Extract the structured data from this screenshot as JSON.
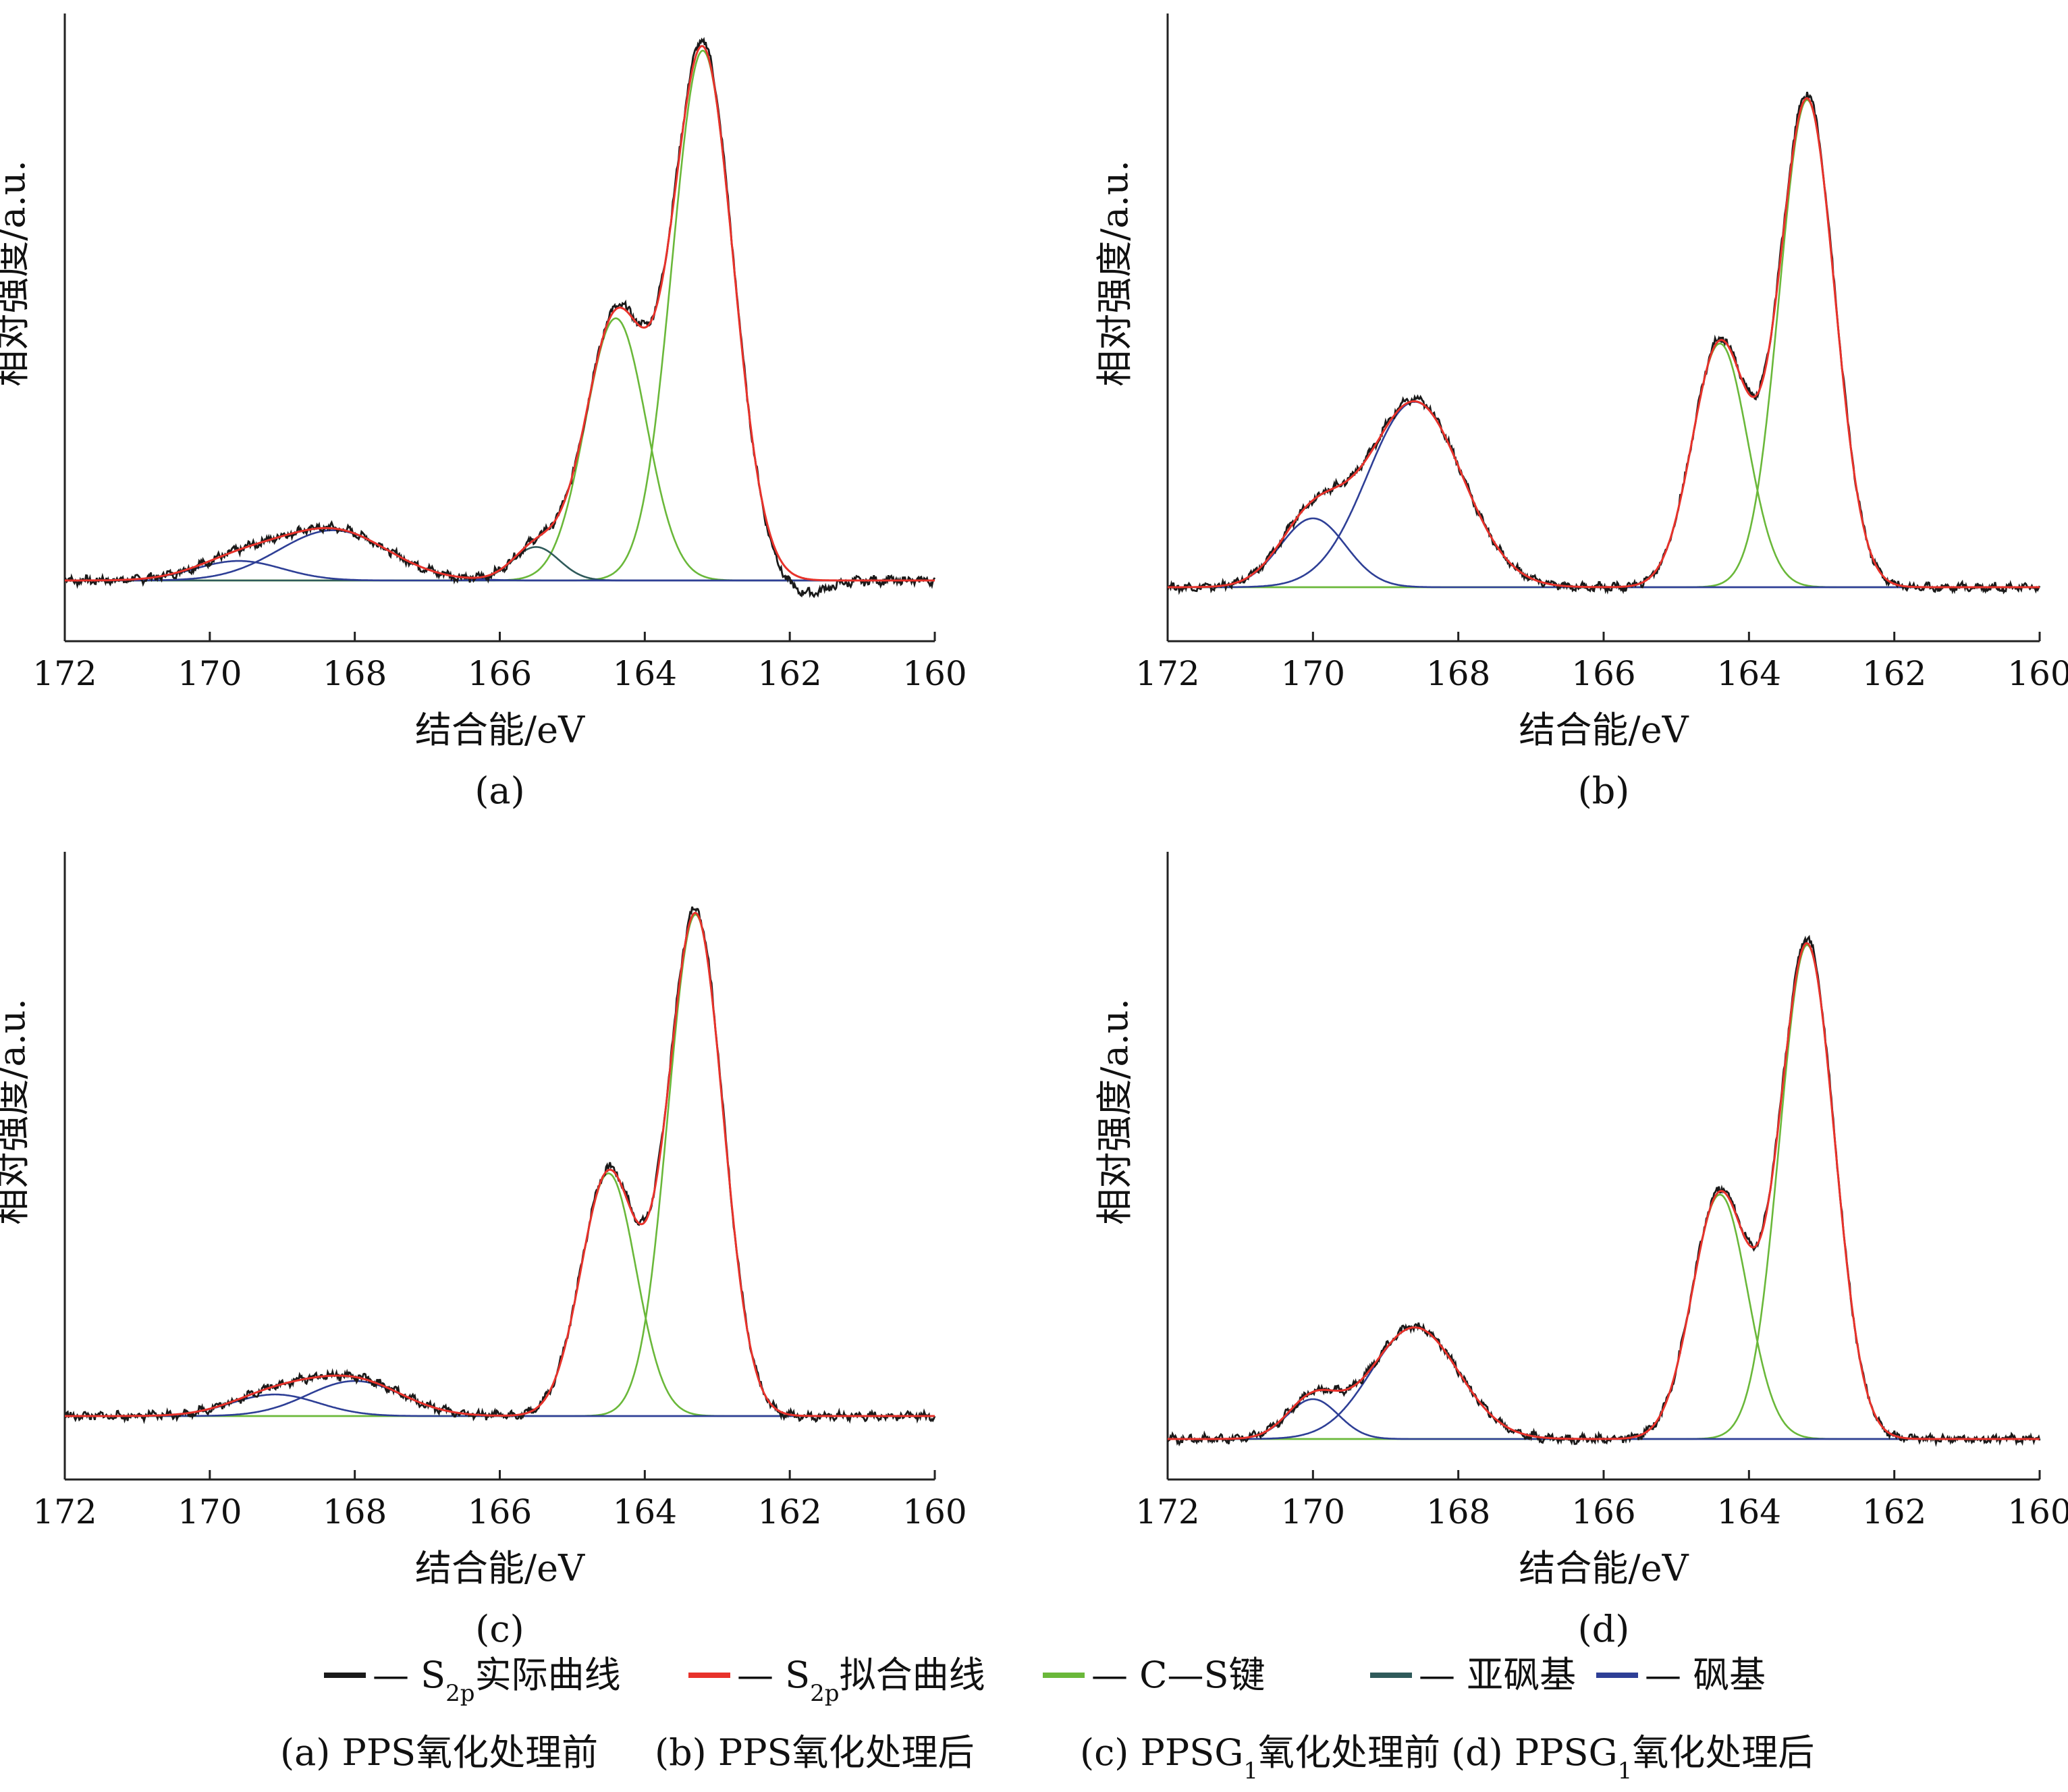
{
  "colors": {
    "axis": "#222222",
    "measured": "#1a1a1a",
    "fit": "#e8322b",
    "cs_bond": "#6ab83a",
    "sulfoxide": "#2f5a5a",
    "sulfone": "#2e3f96"
  },
  "chart_data": [
    {
      "type": "line",
      "panel": "a",
      "caption": "(a)",
      "xlabel": "结合能/eV",
      "ylabel": "相对强度/a.u.",
      "xlim": [
        172,
        160
      ],
      "ylim": [
        -0.1,
        1.0
      ],
      "xticks": [
        172,
        170,
        168,
        166,
        164,
        162,
        160
      ],
      "xtick_labels": [
        "172",
        "170",
        "168",
        "166",
        "164",
        "162",
        "160"
      ],
      "baseline": 0,
      "components": [
        {
          "series": "cs_bond",
          "peaks": [
            {
              "center": 163.2,
              "height": 0.95,
              "sigma": 0.42
            },
            {
              "center": 164.4,
              "height": 0.47,
              "sigma": 0.42
            }
          ]
        },
        {
          "series": "sulfoxide",
          "peaks": [
            {
              "center": 165.5,
              "height": 0.06,
              "sigma": 0.32
            }
          ]
        },
        {
          "series": "sulfone",
          "peaks": [
            {
              "center": 168.3,
              "height": 0.09,
              "sigma": 0.75
            },
            {
              "center": 169.6,
              "height": 0.035,
              "sigma": 0.6
            }
          ]
        }
      ],
      "measured_dip": {
        "center": 161.8,
        "depth": 0.025,
        "sigma": 0.3
      }
    },
    {
      "type": "line",
      "panel": "b",
      "caption": "(b)",
      "xlabel": "结合能/eV",
      "ylabel": "相对强度/a.u.",
      "xlim": [
        172,
        160
      ],
      "ylim": [
        -0.1,
        1.0
      ],
      "xticks": [
        172,
        170,
        168,
        166,
        164,
        162,
        160
      ],
      "xtick_labels": [
        "172",
        "170",
        "168",
        "166",
        "164",
        "162",
        "160"
      ],
      "baseline": 0,
      "components": [
        {
          "series": "cs_bond",
          "peaks": [
            {
              "center": 163.2,
              "height": 0.92,
              "sigma": 0.38
            },
            {
              "center": 164.4,
              "height": 0.46,
              "sigma": 0.38
            }
          ]
        },
        {
          "series": "sulfone",
          "peaks": [
            {
              "center": 168.6,
              "height": 0.35,
              "sigma": 0.65
            },
            {
              "center": 170.0,
              "height": 0.13,
              "sigma": 0.45
            }
          ]
        }
      ],
      "measured_dip": null
    },
    {
      "type": "line",
      "panel": "c",
      "caption": "(c)",
      "xlabel": "结合能/eV",
      "ylabel": "相对强度/a.u.",
      "xlim": [
        172,
        160
      ],
      "ylim": [
        -0.1,
        1.0
      ],
      "xticks": [
        172,
        170,
        168,
        166,
        164,
        162,
        160
      ],
      "xtick_labels": [
        "172",
        "170",
        "168",
        "166",
        "164",
        "162",
        "160"
      ],
      "baseline": 0,
      "components": [
        {
          "series": "cs_bond",
          "peaks": [
            {
              "center": 163.3,
              "height": 0.93,
              "sigma": 0.38
            },
            {
              "center": 164.5,
              "height": 0.45,
              "sigma": 0.38
            }
          ]
        },
        {
          "series": "sulfone",
          "peaks": [
            {
              "center": 168.0,
              "height": 0.065,
              "sigma": 0.65
            },
            {
              "center": 169.1,
              "height": 0.04,
              "sigma": 0.6
            }
          ]
        }
      ],
      "measured_dip": null
    },
    {
      "type": "line",
      "panel": "d",
      "caption": "(d)",
      "xlabel": "结合能/eV",
      "ylabel": "相对强度/a.u.",
      "xlim": [
        172,
        160
      ],
      "ylim": [
        -0.1,
        1.0
      ],
      "xticks": [
        172,
        170,
        168,
        166,
        164,
        162,
        160
      ],
      "xtick_labels": [
        "172",
        "170",
        "168",
        "166",
        "164",
        "162",
        "160"
      ],
      "baseline": 0,
      "components": [
        {
          "series": "cs_bond",
          "peaks": [
            {
              "center": 163.2,
              "height": 0.93,
              "sigma": 0.38
            },
            {
              "center": 164.4,
              "height": 0.46,
              "sigma": 0.38
            }
          ]
        },
        {
          "series": "sulfone",
          "peaks": [
            {
              "center": 168.6,
              "height": 0.21,
              "sigma": 0.6
            },
            {
              "center": 170.0,
              "height": 0.075,
              "sigma": 0.35
            }
          ]
        }
      ],
      "measured_dip": null
    }
  ],
  "legend": {
    "items": [
      {
        "key": "measured",
        "prefix": "— S",
        "sub": "2p",
        "suffix": "实际曲线"
      },
      {
        "key": "fit",
        "prefix": "— S",
        "sub": "2p",
        "suffix": "拟合曲线"
      },
      {
        "key": "cs_bond",
        "prefix": "— C—S键",
        "sub": "",
        "suffix": ""
      },
      {
        "key": "sulfoxide",
        "prefix": "— 亚砜基",
        "sub": "",
        "suffix": ""
      },
      {
        "key": "sulfone",
        "prefix": "— 砜基",
        "sub": "",
        "suffix": ""
      }
    ]
  },
  "captions": [
    {
      "prefix": "(a) PPS氧化处理前",
      "sub": "",
      "suffix": ""
    },
    {
      "prefix": "(b) PPS氧化处理后",
      "sub": "",
      "suffix": ""
    },
    {
      "prefix": "(c) PPSG",
      "sub": "1",
      "suffix": "氧化处理前"
    },
    {
      "prefix": "(d) PPSG",
      "sub": "1",
      "suffix": "氧化处理后"
    }
  ]
}
